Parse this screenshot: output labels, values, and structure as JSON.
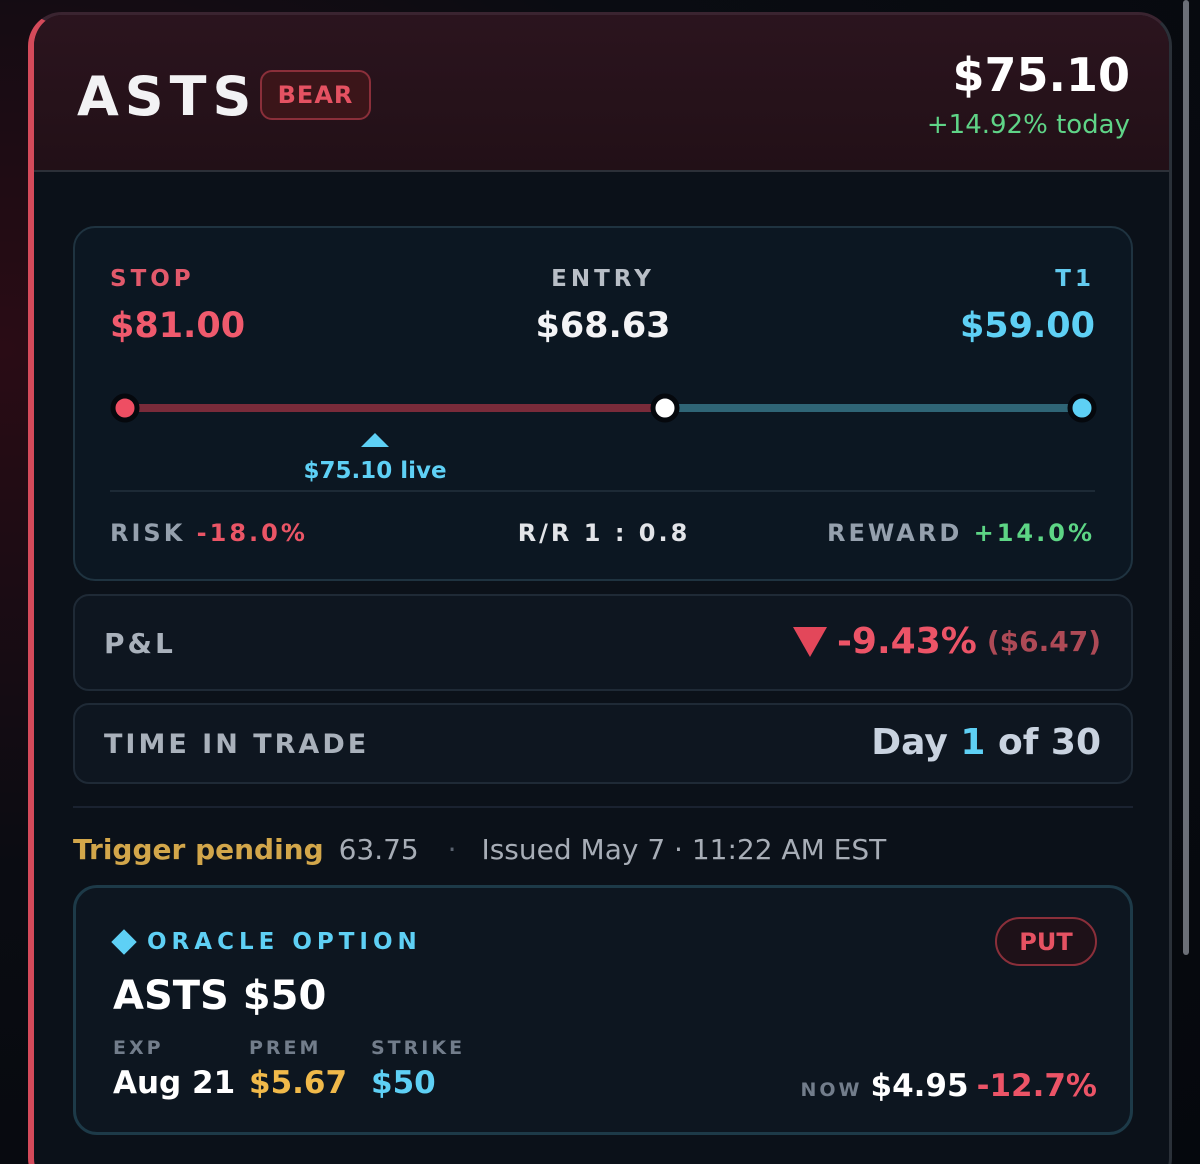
{
  "header": {
    "ticker": "ASTS",
    "direction_badge": "BEAR",
    "price": "$75.10",
    "change": "+14.92% today"
  },
  "levels": {
    "stop_label": "STOP",
    "stop_value": "$81.00",
    "entry_label": "ENTRY",
    "entry_value": "$68.63",
    "target_label": "T1",
    "target_value": "$59.00",
    "live_marker": "$75.10 live",
    "risk_label": "RISK",
    "risk_value": "-18.0%",
    "rr_label": "R/R 1 : 0.8",
    "reward_label": "REWARD",
    "reward_value": "+14.0%"
  },
  "pnl": {
    "label": "P&L",
    "percent": "-9.43%",
    "amount": "($6.47)"
  },
  "time_in_trade": {
    "label": "TIME IN TRADE",
    "prefix": "Day",
    "day": "1",
    "suffix": "of 30"
  },
  "trigger": {
    "label": "Trigger pending",
    "value": "63.75",
    "separator": "·",
    "issued": "Issued May 7 · 11:22 AM EST"
  },
  "option": {
    "tag": "ORACLE OPTION",
    "type_badge": "PUT",
    "title": "ASTS $50",
    "exp_label": "EXP",
    "exp_value": "Aug 21",
    "prem_label": "PREM",
    "prem_value": "$5.67",
    "strike_label": "STRIKE",
    "strike_value": "$50",
    "now_label": "NOW",
    "now_price": "$4.95",
    "now_change": "-12.7%"
  },
  "colors": {
    "bear_red": "#e55262",
    "target_cyan": "#5ed0f5",
    "gain_green": "#5dd585",
    "trigger_gold": "#d2a64a"
  },
  "icons": [
    "down-triangle-icon",
    "diamond-icon",
    "up-triangle-icon"
  ]
}
